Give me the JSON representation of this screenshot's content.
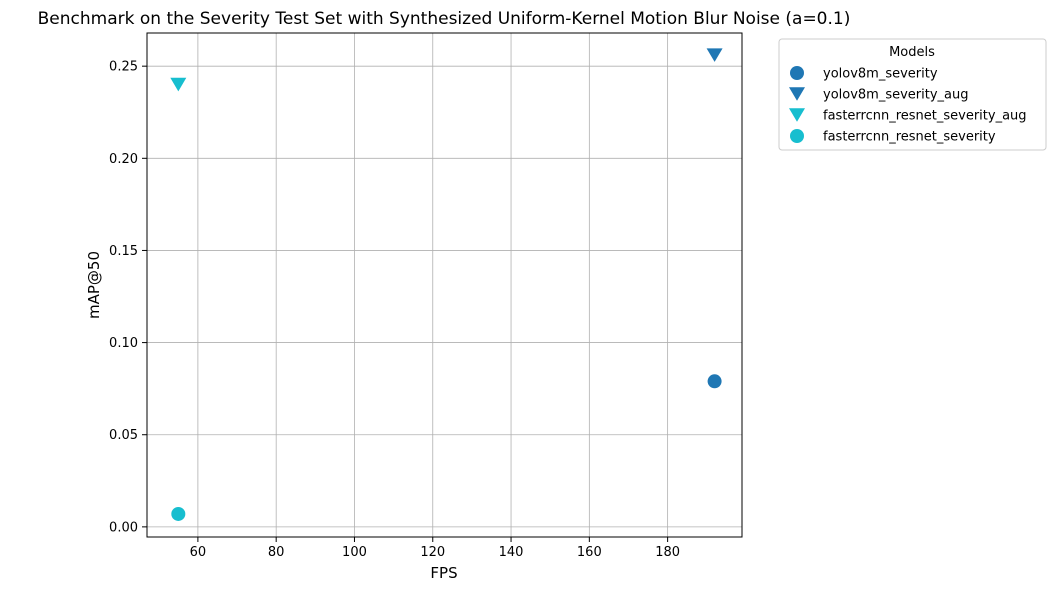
{
  "chart_data": {
    "type": "scatter",
    "title": "Benchmark on the Severity Test Set with Synthesized Uniform-Kernel Motion Blur Noise  (a=0.1)",
    "xlabel": "FPS",
    "ylabel": "mAP@50",
    "xlim": [
      47,
      199
    ],
    "ylim": [
      -0.0055,
      0.268
    ],
    "xticks": [
      60,
      80,
      100,
      120,
      140,
      160,
      180
    ],
    "xtick_labels": [
      "60",
      "80",
      "100",
      "120",
      "140",
      "160",
      "180"
    ],
    "yticks": [
      0.0,
      0.05,
      0.1,
      0.15,
      0.2,
      0.25
    ],
    "ytick_labels": [
      "0.00",
      "0.05",
      "0.10",
      "0.15",
      "0.20",
      "0.25"
    ],
    "grid": true,
    "legend": {
      "title": "Models",
      "placement": "outside-upper-right"
    },
    "series": [
      {
        "name": "yolov8m_severity",
        "marker": "circle",
        "color": "#1f77b4",
        "points": [
          {
            "x": 192,
            "y": 0.079
          }
        ]
      },
      {
        "name": "yolov8m_severity_aug",
        "marker": "triangle-down",
        "color": "#1f77b4",
        "points": [
          {
            "x": 192,
            "y": 0.256
          }
        ]
      },
      {
        "name": "fasterrcnn_resnet_severity_aug",
        "marker": "triangle-down",
        "color": "#17becf",
        "points": [
          {
            "x": 55,
            "y": 0.24
          }
        ]
      },
      {
        "name": "fasterrcnn_resnet_severity",
        "marker": "circle",
        "color": "#17becf",
        "points": [
          {
            "x": 55,
            "y": 0.007
          }
        ]
      }
    ]
  }
}
